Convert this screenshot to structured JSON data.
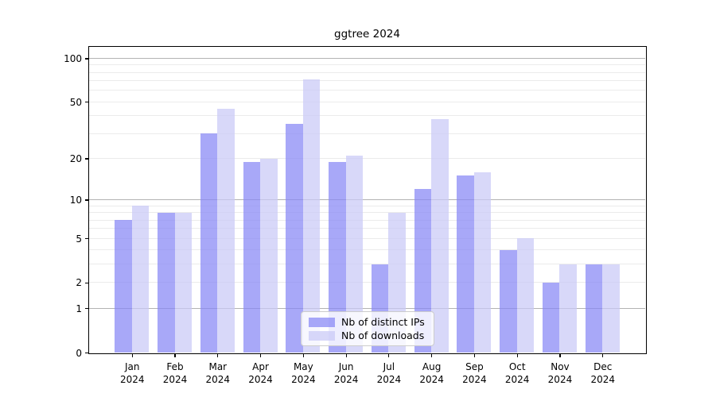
{
  "figure": {
    "title": "ggtree 2024"
  },
  "chart_data": {
    "type": "bar",
    "title": "ggtree 2024",
    "categories": [
      "Jan 2024",
      "Feb 2024",
      "Mar 2024",
      "Apr 2024",
      "May 2024",
      "Jun 2024",
      "Jul 2024",
      "Aug 2024",
      "Sep 2024",
      "Oct 2024",
      "Nov 2024",
      "Dec 2024"
    ],
    "series": [
      {
        "name": "Nb of distinct IPs",
        "color": "#a6a6f7",
        "fill_rgba": "rgba(134,134,245,0.72)",
        "values": [
          7,
          8,
          30,
          19,
          35,
          19,
          3,
          12,
          15,
          4,
          2,
          3
        ]
      },
      {
        "name": "Nb of downloads",
        "color": "#d8d8fa",
        "fill_rgba": "rgba(201,201,247,0.72)",
        "values": [
          9,
          8,
          45,
          20,
          72,
          21,
          8,
          38,
          16,
          5,
          3,
          3
        ]
      }
    ],
    "xlabel": "",
    "ylabel": "",
    "y_scale": "log1p",
    "ylim": [
      0,
      120
    ],
    "y_ticks": [
      0,
      1,
      2,
      5,
      10,
      20,
      50,
      100
    ],
    "grid_major": [
      1,
      10,
      100
    ],
    "grid_minor": [
      2,
      3,
      4,
      5,
      6,
      7,
      8,
      9,
      20,
      30,
      40,
      50,
      60,
      70,
      80,
      90
    ],
    "grid": "horizontal",
    "legend_position": "bottom-center",
    "colors": {
      "grid_major": "#b3b3b3",
      "grid_minor": "#ebebeb",
      "axis": "#000000",
      "text": "#1a1a1a",
      "legend_border": "#cccccc",
      "legend_bg": "rgba(255,255,255,0.8)"
    }
  }
}
